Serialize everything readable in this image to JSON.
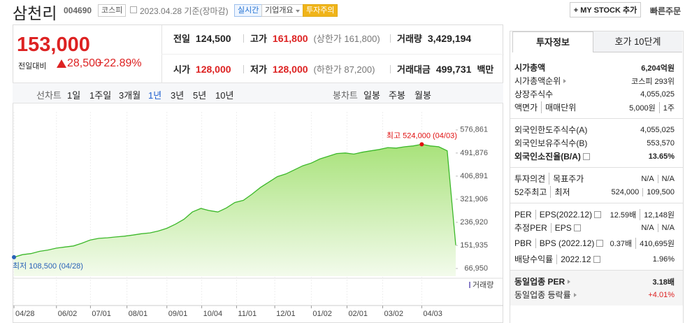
{
  "header": {
    "name": "삼천리",
    "code": "004690",
    "market": "코스피",
    "date": "2023.04.28",
    "basis": "기준(장마감)",
    "badges": [
      "실시간",
      "기업개요",
      "투자주의"
    ],
    "my_stock": "+ MY STOCK 추가",
    "quick_order": "빠른주문"
  },
  "quote": {
    "price": "153,000",
    "change_label": "전일대비",
    "change": "28,500",
    "change_rate": "+22.89%",
    "fields": [
      {
        "label": "전일",
        "value": "124,500",
        "color": "#222222"
      },
      {
        "label": "고가",
        "value": "161,800",
        "note": "(상한가 161,800)",
        "color": "#dd2222"
      },
      {
        "label": "거래량",
        "value": "3,429,194",
        "color": "#222222"
      },
      {
        "label": "시가",
        "value": "128,000",
        "color": "#dd2222"
      },
      {
        "label": "저가",
        "value": "128,000",
        "note": "(하한가 87,200)",
        "color": "#dd2222"
      },
      {
        "label": "거래대금",
        "value": "499,731",
        "unit": "백만",
        "color": "#222222"
      }
    ]
  },
  "chart_tabs": {
    "line_label": "선차트",
    "line_tabs": [
      "1일",
      "1주일",
      "3개월",
      "1년",
      "3년",
      "5년",
      "10년"
    ],
    "selected": 3,
    "candle_label": "봉차트",
    "candle_tabs": [
      "일봉",
      "주봉",
      "월봉"
    ]
  },
  "chart": {
    "type": "area",
    "color": "#3cb82a",
    "values": [
      108500,
      118000,
      122000,
      130000,
      135000,
      142000,
      146000,
      150000,
      160000,
      172000,
      178000,
      180000,
      183000,
      186000,
      190000,
      195000,
      198000,
      205000,
      215000,
      230000,
      248000,
      275000,
      288000,
      280000,
      275000,
      290000,
      310000,
      318000,
      340000,
      365000,
      385000,
      405000,
      415000,
      430000,
      445000,
      455000,
      470000,
      480000,
      490000,
      492000,
      488000,
      495000,
      500000,
      505000,
      512000,
      510000,
      515000,
      518000,
      524000,
      518000,
      515000,
      500000,
      153000
    ],
    "xlim": [
      0,
      52
    ],
    "xticks": [
      {
        "value": 0,
        "label": "04/28"
      },
      {
        "value": 5,
        "label": "06/02"
      },
      {
        "value": 9,
        "label": "07/01"
      },
      {
        "value": 13.3,
        "label": "08/01"
      },
      {
        "value": 18,
        "label": "09/01"
      },
      {
        "value": 22.1,
        "label": "10/04"
      },
      {
        "value": 26.2,
        "label": "11/01"
      },
      {
        "value": 30.7,
        "label": "12/01"
      },
      {
        "value": 35,
        "label": "01/02"
      },
      {
        "value": 39.2,
        "label": "02/01"
      },
      {
        "value": 43.4,
        "label": "03/02"
      },
      {
        "value": 48,
        "label": "04/03"
      }
    ],
    "ylim": [
      38800,
      656200
    ],
    "yticks": [
      {
        "value": 66950,
        "label": "66,950"
      },
      {
        "value": 151935,
        "label": "151,935"
      },
      {
        "value": 236920,
        "label": "236,920"
      },
      {
        "value": 321906,
        "label": "321,906"
      },
      {
        "value": 406891,
        "label": "406,891"
      },
      {
        "value": 491876,
        "label": "491,876"
      },
      {
        "value": 576861,
        "label": "576,861"
      }
    ],
    "high": {
      "text": "최고 524,000 (04/03)",
      "x": 48,
      "y": 524000,
      "color": "#e01010"
    },
    "low": {
      "text": "최저 108,500 (04/28)",
      "x": 0,
      "y": 108500,
      "color": "#2a62b8"
    },
    "volume_legend": "거래량"
  },
  "invest_info": {
    "tabs": [
      "투자정보",
      "호가 10단계"
    ],
    "sections": [
      {
        "rows": [
          {
            "labels": [
              "시가총액"
            ],
            "values": [
              "6,204억원"
            ],
            "bold": true
          },
          {
            "labels": [
              "시가총액순위"
            ],
            "values": [
              "코스피 293위"
            ],
            "link": true
          },
          {
            "labels": [
              "상장주식수"
            ],
            "values": [
              "4,055,025"
            ]
          },
          {
            "labels": [
              "액면가",
              "매매단위"
            ],
            "values": [
              "5,000원",
              "1주"
            ]
          }
        ]
      },
      {
        "rows": [
          {
            "labels": [
              "외국인한도주식수(A)"
            ],
            "values": [
              "4,055,025"
            ]
          },
          {
            "labels": [
              "외국인보유주식수(B)"
            ],
            "values": [
              "553,570"
            ]
          },
          {
            "labels": [
              "외국인소진율(B/A)"
            ],
            "values": [
              "13.65%"
            ],
            "bold": true,
            "help": true
          }
        ]
      },
      {
        "rows": [
          {
            "labels": [
              "투자의견",
              "목표주가"
            ],
            "values": [
              "N/A",
              "N/A"
            ]
          },
          {
            "labels": [
              "52주최고",
              "최저"
            ],
            "values": [
              "524,000",
              "109,500"
            ]
          }
        ]
      },
      {
        "rows": [
          {
            "labels": [
              "PER",
              "EPS(2022.12)"
            ],
            "values": [
              "12.59배",
              "12,148원"
            ],
            "help": true
          },
          {
            "labels": [
              "추정PER",
              "EPS"
            ],
            "values": [
              "N/A",
              "N/A"
            ],
            "help": true
          },
          {
            "labels": [
              "PBR",
              "BPS (2022.12)"
            ],
            "values": [
              "0.37배",
              "410,695원"
            ],
            "help": true
          },
          {
            "labels": [
              "배당수익률",
              "2022.12"
            ],
            "values": [
              "1.96%"
            ],
            "help": true
          }
        ]
      },
      {
        "shaded": true,
        "rows": [
          {
            "labels": [
              "동일업종 PER"
            ],
            "values": [
              "3.18배"
            ],
            "bold": true,
            "link": true
          },
          {
            "labels": [
              "동일업종 등락률"
            ],
            "values": [
              "+4.01%"
            ],
            "link": true,
            "color": "#dd2222"
          }
        ]
      }
    ]
  }
}
